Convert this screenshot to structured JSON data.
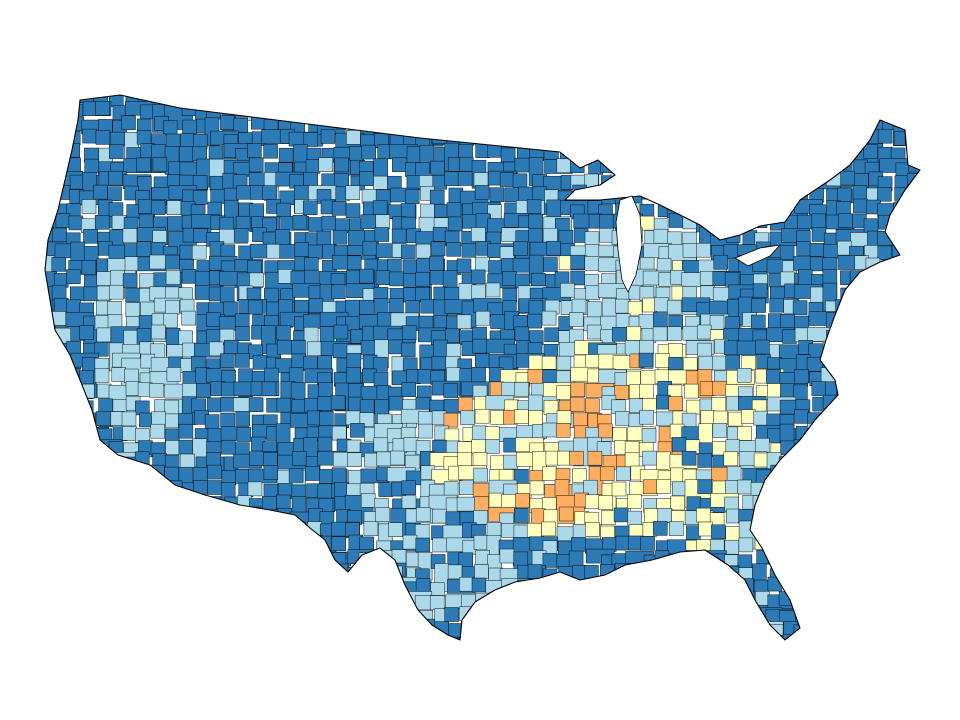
{
  "map": {
    "type": "choropleth",
    "region": "contiguous-united-states",
    "unit": "county",
    "border_color": "#000000",
    "background_color": "#ffffff",
    "classes": [
      {
        "id": "class-1",
        "color": "#2c7bb6"
      },
      {
        "id": "class-2",
        "color": "#abd9e9"
      },
      {
        "id": "class-3",
        "color": "#ffffbf"
      },
      {
        "id": "class-4",
        "color": "#fdae61"
      }
    ],
    "regional_pattern": [
      {
        "area": "pacific-northwest",
        "class": "class-1"
      },
      {
        "area": "california-coast",
        "class": "class-1"
      },
      {
        "area": "great-basin",
        "class": "class-2"
      },
      {
        "area": "mountain-west",
        "class": "class-1"
      },
      {
        "area": "northern-plains",
        "class": "class-1"
      },
      {
        "area": "southwest",
        "class": "class-1"
      },
      {
        "area": "texas",
        "class": "class-2"
      },
      {
        "area": "great-lakes",
        "class": "class-2"
      },
      {
        "area": "northeast",
        "class": "class-1"
      },
      {
        "area": "mid-atlantic",
        "class": "class-1"
      },
      {
        "area": "southeast-florida",
        "class": "class-1"
      },
      {
        "area": "mississippi-delta",
        "class": "class-3"
      },
      {
        "area": "lower-midwest-south",
        "class": "class-3"
      },
      {
        "area": "appalachia",
        "class": "class-3"
      },
      {
        "area": "ozarks",
        "class": "class-4"
      },
      {
        "area": "kentucky-tennessee",
        "class": "class-4"
      }
    ]
  }
}
